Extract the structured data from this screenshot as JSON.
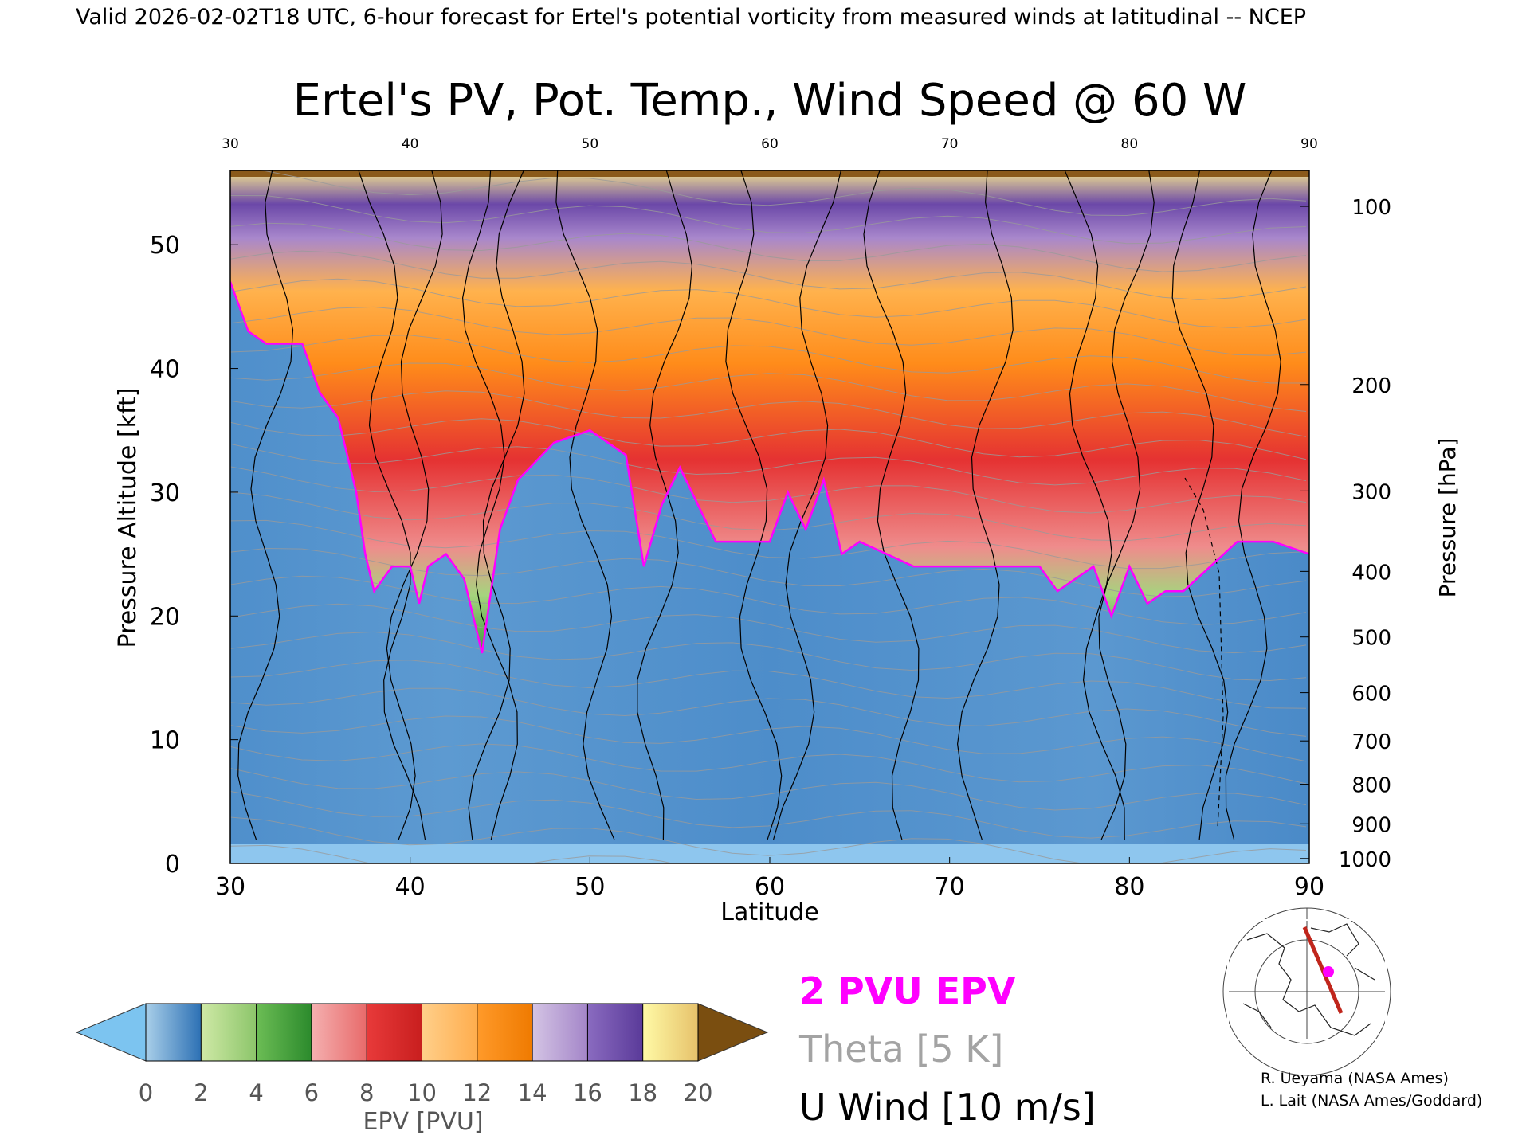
{
  "header": "Valid 2026-02-02T18 UTC, 6-hour forecast for Ertel's potential vorticity from measured winds at latitudinal -- NCEP",
  "chart_data": {
    "type": "heatmap",
    "title": "Ertel's PV, Pot. Temp., Wind Speed @ 60 W",
    "xlabel": "Latitude",
    "ylabel": "Pressure Altitude [kft]",
    "ylabel_right": "Pressure [hPa]",
    "xlim": [
      30,
      90
    ],
    "ylim": [
      0,
      56
    ],
    "x_ticks": [
      30,
      40,
      50,
      60,
      70,
      80,
      90
    ],
    "y_ticks": [
      0,
      10,
      20,
      30,
      40,
      50
    ],
    "pressure_ticks": [
      {
        "hpa": "100",
        "kft": 53.1
      },
      {
        "hpa": "200",
        "kft": 38.7
      },
      {
        "hpa": "300",
        "kft": 30.1
      },
      {
        "hpa": "400",
        "kft": 23.6
      },
      {
        "hpa": "500",
        "kft": 18.3
      },
      {
        "hpa": "600",
        "kft": 13.8
      },
      {
        "hpa": "700",
        "kft": 9.9
      },
      {
        "hpa": "800",
        "kft": 6.4
      },
      {
        "hpa": "900",
        "kft": 3.2
      },
      {
        "hpa": "1000",
        "kft": 0.4
      }
    ],
    "pv2_boundary_kft": [
      [
        30,
        47
      ],
      [
        31,
        43
      ],
      [
        32,
        42
      ],
      [
        34,
        42
      ],
      [
        35,
        38
      ],
      [
        36,
        36
      ],
      [
        37,
        30
      ],
      [
        37.5,
        25
      ],
      [
        38,
        22
      ],
      [
        39,
        24
      ],
      [
        40,
        24
      ],
      [
        40.5,
        21
      ],
      [
        41,
        24
      ],
      [
        42,
        25
      ],
      [
        43,
        23
      ],
      [
        44,
        17
      ],
      [
        45,
        27
      ],
      [
        46,
        31
      ],
      [
        48,
        34
      ],
      [
        50,
        35
      ],
      [
        52,
        33
      ],
      [
        53,
        24
      ],
      [
        54,
        29
      ],
      [
        55,
        32
      ],
      [
        57,
        26
      ],
      [
        60,
        26
      ],
      [
        61,
        30
      ],
      [
        62,
        27
      ],
      [
        63,
        31
      ],
      [
        64,
        25
      ],
      [
        65,
        26
      ],
      [
        68,
        24
      ],
      [
        72,
        24
      ],
      [
        75,
        24
      ],
      [
        76,
        22
      ],
      [
        78,
        24
      ],
      [
        79,
        20
      ],
      [
        80,
        24
      ],
      [
        81,
        21
      ],
      [
        82,
        22
      ],
      [
        83,
        22
      ],
      [
        86,
        26
      ],
      [
        88,
        26
      ],
      [
        90,
        25
      ]
    ],
    "colorbar": {
      "label": "EPV [PVU]",
      "ticks": [
        "0",
        "2",
        "4",
        "6",
        "8",
        "10",
        "12",
        "14",
        "16",
        "18",
        "20"
      ],
      "bands": [
        {
          "from": 0,
          "to": 2,
          "colors": [
            "#a9cfe9",
            "#2c70b4"
          ]
        },
        {
          "from": 2,
          "to": 4,
          "colors": [
            "#cfe9a6",
            "#8cc56a"
          ]
        },
        {
          "from": 4,
          "to": 6,
          "colors": [
            "#6cbd55",
            "#2b8a2c"
          ]
        },
        {
          "from": 6,
          "to": 8,
          "colors": [
            "#f4b0b0",
            "#e86a6a"
          ]
        },
        {
          "from": 8,
          "to": 10,
          "colors": [
            "#e83a3a",
            "#c81e1e"
          ]
        },
        {
          "from": 10,
          "to": 12,
          "colors": [
            "#ffcf8a",
            "#ffad4d"
          ]
        },
        {
          "from": 12,
          "to": 14,
          "colors": [
            "#ff9a2a",
            "#ef7a00"
          ]
        },
        {
          "from": 14,
          "to": 16,
          "colors": [
            "#d4c4e4",
            "#a385c8"
          ]
        },
        {
          "from": 16,
          "to": 18,
          "colors": [
            "#8a6bc0",
            "#5a3a99"
          ]
        },
        {
          "from": 18,
          "to": 20,
          "colors": [
            "#fffaa6",
            "#e6c16a"
          ]
        }
      ],
      "under_color": "#7cc4f0",
      "over_color": "#7a4e10"
    },
    "legend": [
      {
        "label": "2 PVU EPV",
        "color": "#ff00ff"
      },
      {
        "label": "Theta [5 K]",
        "color": "#a3a3a3"
      },
      {
        "label": "U Wind [10 m/s]",
        "color": "#000000"
      }
    ]
  },
  "credits": [
    "R. Ueyama (NASA Ames)",
    "L. Lait (NASA Ames/Goddard)"
  ]
}
